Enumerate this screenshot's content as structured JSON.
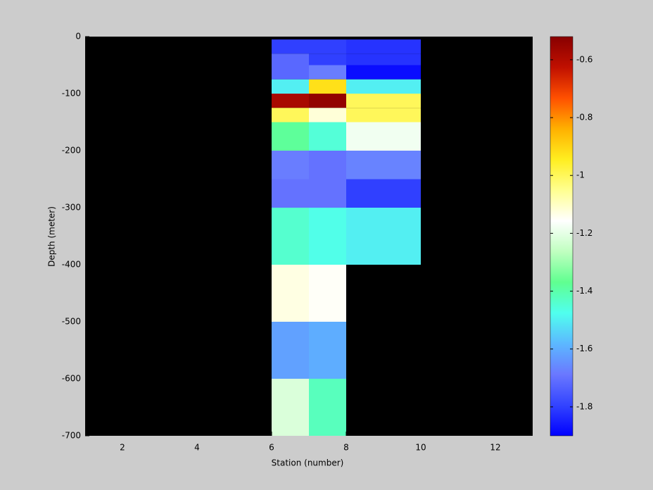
{
  "chart_data": {
    "type": "heatmap",
    "xlabel": "Station (number)",
    "ylabel": "Depth (meter)",
    "xlim": [
      1,
      13
    ],
    "xticks": [
      2,
      4,
      6,
      8,
      10,
      12
    ],
    "ylim": [
      -700,
      0
    ],
    "yticks": [
      0,
      -100,
      -200,
      -300,
      -400,
      -500,
      -600,
      -700
    ],
    "x_edges": [
      6,
      7,
      8,
      10
    ],
    "y_edges": [
      -5,
      -30,
      -50,
      -75,
      -100,
      -125,
      -150,
      -200,
      -250,
      -300,
      -400,
      -500,
      -600,
      -700
    ],
    "values": [
      [
        -1.8,
        -1.8,
        -1.82
      ],
      [
        -1.72,
        -1.8,
        -1.82
      ],
      [
        -1.72,
        -1.68,
        -1.88
      ],
      [
        -1.5,
        -0.92,
        -1.5
      ],
      [
        -0.58,
        -0.54,
        -1.0
      ],
      [
        -1.0,
        -1.12,
        -1.0
      ],
      [
        -1.38,
        -1.45,
        -1.18
      ],
      [
        -1.68,
        -1.7,
        -1.67
      ],
      [
        -1.7,
        -1.7,
        -1.8
      ],
      [
        -1.44,
        -1.47,
        -1.5
      ],
      [
        -1.13,
        -1.15,
        null
      ],
      [
        -1.62,
        -1.6,
        null
      ],
      [
        -1.22,
        -1.42,
        null
      ]
    ],
    "clim": [
      -1.9,
      -0.52
    ],
    "cticks": [
      -0.6,
      -0.8,
      -1,
      -1.2,
      -1.4,
      -1.6,
      -1.8
    ],
    "colormap": [
      "#0000ff",
      "#3344ff",
      "#6a78ff",
      "#5cb8ff",
      "#50ffee",
      "#60ff90",
      "#c0ffc0",
      "#ffffff",
      "#ffff90",
      "#ffee20",
      "#ffb000",
      "#ff5000",
      "#c01000",
      "#880000"
    ],
    "background": "#000000"
  }
}
